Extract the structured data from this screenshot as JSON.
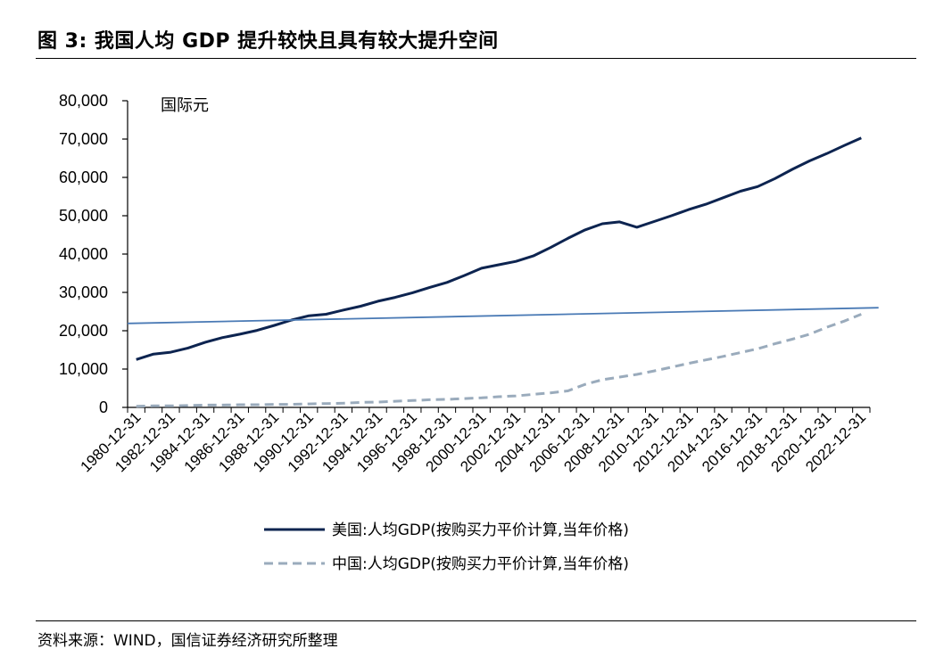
{
  "header": {
    "title": "图 3:  我国人均 GDP 提升较快且具有较大提升空间"
  },
  "footer": {
    "source": "资料来源：WIND，国信证券经济研究所整理"
  },
  "colors": {
    "us": "#0d2450",
    "cn": "#9aabbc",
    "trend": "#4a7ab5",
    "axis": "#000000"
  },
  "chart_data": {
    "type": "line",
    "unit_label": "国际元",
    "ylim": [
      0,
      80000
    ],
    "yticks": [
      0,
      10000,
      20000,
      30000,
      40000,
      50000,
      60000,
      70000,
      80000
    ],
    "ytick_labels": [
      "0",
      "10,000",
      "20,000",
      "30,000",
      "40,000",
      "50,000",
      "60,000",
      "70,000",
      "80,000"
    ],
    "years": [
      1980,
      1981,
      1982,
      1983,
      1984,
      1985,
      1986,
      1987,
      1988,
      1989,
      1990,
      1991,
      1992,
      1993,
      1994,
      1995,
      1996,
      1997,
      1998,
      1999,
      2000,
      2001,
      2002,
      2003,
      2004,
      2005,
      2006,
      2007,
      2008,
      2009,
      2010,
      2011,
      2012,
      2013,
      2014,
      2015,
      2016,
      2017,
      2018,
      2019,
      2020,
      2021,
      2022
    ],
    "x_tick_labels": [
      "1980-12-31",
      "1982-12-31",
      "1984-12-31",
      "1986-12-31",
      "1988-12-31",
      "1990-12-31",
      "1992-12-31",
      "1994-12-31",
      "1996-12-31",
      "1998-12-31",
      "2000-12-31",
      "2002-12-31",
      "2004-12-31",
      "2006-12-31",
      "2008-12-31",
      "2010-12-31",
      "2012-12-31",
      "2014-12-31",
      "2016-12-31",
      "2018-12-31",
      "2020-12-31",
      "2022-12-31"
    ],
    "series": [
      {
        "name": "美国:人均GDP(按购买力平价计算,当年价格)",
        "style": "solid",
        "values": [
          12500,
          13900,
          14400,
          15500,
          17000,
          18200,
          19100,
          20100,
          21400,
          22800,
          23900,
          24300,
          25400,
          26400,
          27700,
          28700,
          29900,
          31300,
          32600,
          34400,
          36300,
          37200,
          38100,
          39500,
          41700,
          44100,
          46300,
          47900,
          48400,
          47000,
          48500,
          50000,
          51600,
          53000,
          54700,
          56400,
          57600,
          59700,
          62100,
          64300,
          66200,
          68300,
          70300
        ]
      },
      {
        "name": "中国:人均GDP(按购买力平价计算,当年价格)",
        "style": "dashed",
        "values": [
          300,
          400,
          400,
          500,
          600,
          600,
          700,
          700,
          800,
          800,
          900,
          1000,
          1100,
          1300,
          1400,
          1600,
          1800,
          2000,
          2100,
          2300,
          2500,
          2800,
          3000,
          3400,
          3800,
          4300,
          6000,
          7200,
          7900,
          8600,
          9500,
          10500,
          11500,
          12400,
          13300,
          14300,
          15300,
          16600,
          17800,
          19100,
          20900,
          22500,
          24300
        ]
      },
      {
        "style": "trend",
        "x_range": [
          1980,
          2022.5
        ],
        "values": [
          21900,
          26000
        ]
      }
    ]
  }
}
